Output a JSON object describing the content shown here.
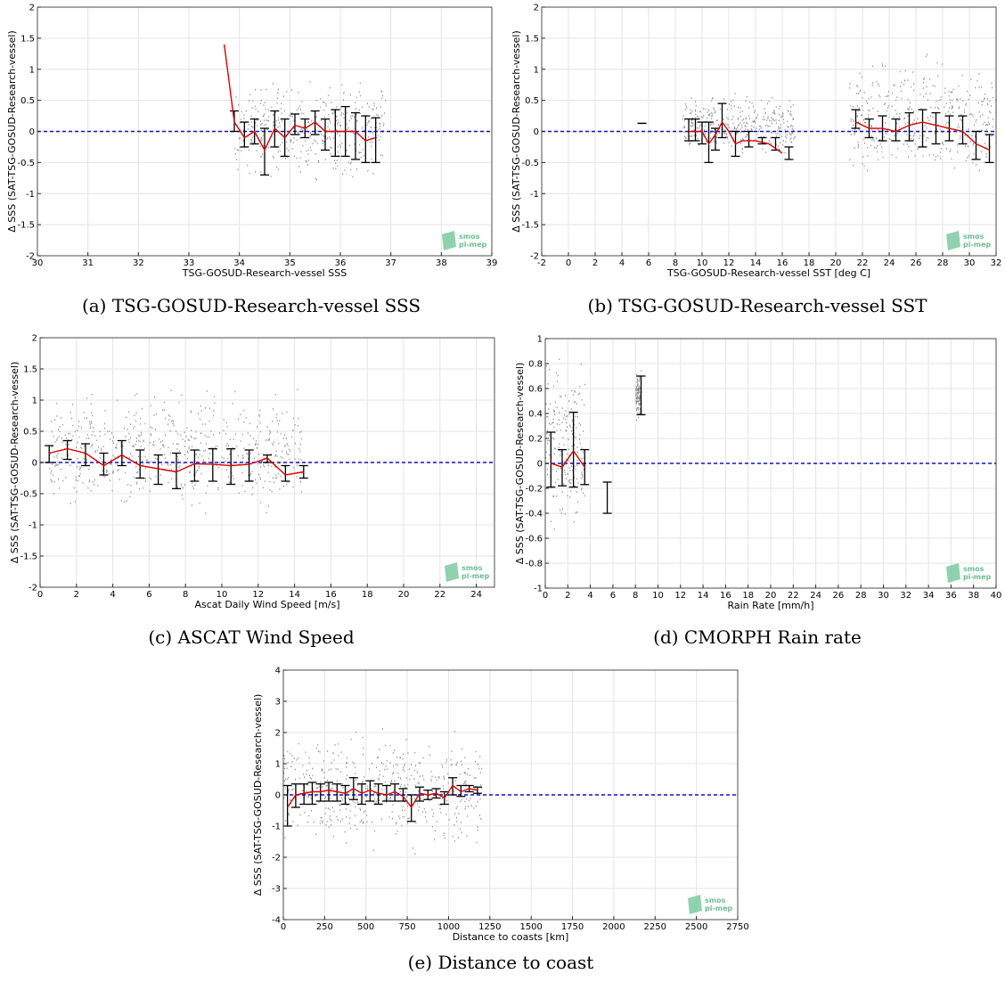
{
  "colors": {
    "scatter": "#8a8a8a",
    "median_line": "#e00000",
    "zero_line": "#1010cc",
    "errorbar": "#000000",
    "grid": "#e4e4e4",
    "logo": "#7cc9a0"
  },
  "logo": {
    "line1": "smos",
    "line2": "pi-mep"
  },
  "chart_data": [
    {
      "id": "a",
      "type": "scatter",
      "caption": "(a) TSG-GOSUD-Research-vessel SSS",
      "xlabel": "TSG-GOSUD-Research-vessel SSS",
      "ylabel": "Δ SSS (SAT-TSG-GOSUD-Research-vessel)",
      "xlim": [
        30,
        39
      ],
      "ylim": [
        -2,
        2
      ],
      "xticks": [
        30,
        31,
        32,
        33,
        34,
        35,
        36,
        37,
        38,
        39
      ],
      "yticks": [
        -2,
        -1.5,
        -1,
        -0.5,
        0,
        0.5,
        1,
        1.5,
        2
      ],
      "grid": true,
      "zero_line": 0,
      "scatter_region": [
        [
          33.9,
          36.9,
          -0.9,
          1.0
        ]
      ],
      "median": {
        "x": [
          33.7,
          33.9,
          34.1,
          34.3,
          34.5,
          34.7,
          34.9,
          35.1,
          35.3,
          35.5,
          35.7,
          35.9,
          36.1,
          36.3,
          36.5,
          36.7
        ],
        "y": [
          1.4,
          0.15,
          -0.1,
          0.0,
          -0.3,
          0.05,
          -0.1,
          0.1,
          0.05,
          0.15,
          0.0,
          0.0,
          0.0,
          0.0,
          -0.15,
          -0.1
        ]
      },
      "errorbars": {
        "x": [
          33.9,
          34.1,
          34.3,
          34.5,
          34.7,
          34.9,
          35.1,
          35.3,
          35.5,
          35.7,
          35.9,
          36.1,
          36.3,
          36.5,
          36.7
        ],
        "lo": [
          0.0,
          -0.25,
          -0.2,
          -0.7,
          -0.25,
          -0.4,
          -0.05,
          -0.1,
          -0.05,
          -0.3,
          -0.4,
          -0.4,
          -0.45,
          -0.5,
          -0.5
        ],
        "hi": [
          0.33,
          0.15,
          0.2,
          0.05,
          0.33,
          0.2,
          0.28,
          0.2,
          0.33,
          0.2,
          0.35,
          0.4,
          0.3,
          0.25,
          0.22
        ]
      }
    },
    {
      "id": "b",
      "type": "scatter",
      "caption": "(b) TSG-GOSUD-Research-vessel SST",
      "xlabel": "TSG-GOSUD-Research-vessel SST [deg C]",
      "ylabel": "Δ SSS (SAT-TSG-GOSUD-Research-vessel)",
      "xlim": [
        -2,
        32
      ],
      "ylim": [
        -2,
        2
      ],
      "xticks": [
        -2,
        0,
        2,
        4,
        6,
        8,
        10,
        12,
        14,
        16,
        18,
        20,
        22,
        24,
        26,
        28,
        30,
        32
      ],
      "yticks": [
        -2,
        -1.5,
        -1,
        -0.5,
        0,
        0.5,
        1,
        1.5,
        2
      ],
      "grid": true,
      "zero_line": 0,
      "scatter_region": [
        [
          8.5,
          17,
          -0.5,
          0.7
        ],
        [
          21,
          32,
          -0.95,
          1.4
        ]
      ],
      "median": {
        "x": [
          9,
          10,
          10.5,
          11,
          11.5,
          12,
          12.5,
          13,
          14,
          15,
          16
        ],
        "y": [
          0.0,
          0.0,
          -0.2,
          -0.05,
          0.15,
          0.0,
          -0.2,
          -0.15,
          -0.15,
          -0.2,
          -0.35
        ],
        "x2": [
          21.5,
          22.5,
          23.5,
          24.5,
          25.5,
          26.5,
          27.5,
          28.5,
          29.5,
          30.5,
          31.5
        ],
        "y2": [
          0.15,
          0.05,
          0.05,
          0.0,
          0.1,
          0.15,
          0.1,
          0.05,
          0.0,
          -0.2,
          -0.3
        ]
      },
      "errorbars": {
        "x": [
          5.5,
          9,
          9.5,
          10,
          10.5,
          11,
          11.5,
          12.5,
          13.5,
          14.5,
          15.5,
          16.5,
          21.5,
          22.5,
          23.5,
          24.5,
          25.5,
          26.5,
          27.5,
          28.5,
          29.5,
          30.5,
          31.5
        ],
        "lo": [
          0.13,
          -0.15,
          -0.15,
          -0.2,
          -0.5,
          -0.3,
          -0.1,
          -0.4,
          -0.25,
          -0.2,
          -0.3,
          -0.45,
          0.05,
          -0.1,
          -0.15,
          -0.15,
          -0.15,
          -0.25,
          -0.2,
          -0.15,
          -0.2,
          -0.45,
          -0.5
        ],
        "hi": [
          0.13,
          0.2,
          0.2,
          0.15,
          0.15,
          0.05,
          0.45,
          0.0,
          0.0,
          -0.1,
          -0.1,
          -0.25,
          0.35,
          0.2,
          0.25,
          0.2,
          0.3,
          0.35,
          0.3,
          0.25,
          0.25,
          0.0,
          -0.05
        ]
      }
    },
    {
      "id": "c",
      "type": "scatter",
      "caption": "(c) ASCAT Wind Speed",
      "xlabel": "Ascat Daily Wind Speed [m/s]",
      "ylabel": "Δ SSS (SAT-TSG-GOSUD-Research-vessel)",
      "xlim": [
        0,
        25
      ],
      "ylim": [
        -2,
        2
      ],
      "xticks": [
        0,
        2,
        4,
        6,
        8,
        10,
        12,
        14,
        16,
        18,
        20,
        22,
        24
      ],
      "yticks": [
        -2,
        -1.5,
        -1,
        -0.5,
        0,
        0.5,
        1,
        1.5,
        2
      ],
      "grid": true,
      "zero_line": 0,
      "scatter_region": [
        [
          0.5,
          14.5,
          -0.95,
          1.4
        ]
      ],
      "median": {
        "x": [
          0.5,
          1.5,
          2.5,
          3.5,
          4.5,
          5.5,
          6.5,
          7.5,
          8.5,
          9.5,
          10.5,
          11.5,
          12.5,
          13.5,
          14.5
        ],
        "y": [
          0.15,
          0.22,
          0.15,
          -0.05,
          0.12,
          -0.05,
          -0.1,
          -0.15,
          -0.02,
          -0.03,
          -0.05,
          -0.03,
          0.07,
          -0.2,
          -0.15
        ]
      },
      "errorbars": {
        "x": [
          0.5,
          1.5,
          2.5,
          3.5,
          4.5,
          5.5,
          6.5,
          7.5,
          8.5,
          9.5,
          10.5,
          11.5,
          12.5,
          13.5,
          14.5
        ],
        "lo": [
          0.0,
          0.05,
          -0.05,
          -0.2,
          -0.05,
          -0.25,
          -0.35,
          -0.42,
          -0.3,
          -0.3,
          -0.35,
          -0.3,
          0.0,
          -0.3,
          -0.25
        ],
        "hi": [
          0.27,
          0.35,
          0.3,
          0.15,
          0.35,
          0.2,
          0.12,
          0.15,
          0.2,
          0.22,
          0.22,
          0.2,
          0.12,
          -0.05,
          -0.05
        ]
      }
    },
    {
      "id": "d",
      "type": "scatter",
      "caption": "(d) CMORPH Rain rate",
      "xlabel": "Rain Rate [mm/h]",
      "ylabel": "Δ SSS (SAT-TSG-GOSUD-Research-vessel)",
      "xlim": [
        0,
        40
      ],
      "ylim": [
        -1,
        1
      ],
      "xticks": [
        0,
        2,
        4,
        6,
        8,
        10,
        12,
        14,
        16,
        18,
        20,
        22,
        24,
        26,
        28,
        30,
        32,
        34,
        36,
        38,
        40
      ],
      "yticks": [
        -1,
        -0.8,
        -0.6,
        -0.4,
        -0.2,
        0,
        0.2,
        0.4,
        0.6,
        0.8,
        1
      ],
      "grid": true,
      "zero_line": 0,
      "scatter_region": [
        [
          0,
          3.5,
          -0.7,
          0.95
        ],
        [
          8,
          8.5,
          0.3,
          0.8
        ]
      ],
      "median": {
        "x": [
          0.5,
          1.5,
          2.5,
          3.5
        ],
        "y": [
          0.0,
          -0.03,
          0.1,
          -0.03
        ]
      },
      "errorbars": {
        "x": [
          0.5,
          1.5,
          2.5,
          3.5,
          5.5,
          8.5
        ],
        "lo": [
          -0.19,
          -0.18,
          -0.19,
          -0.17,
          -0.4,
          0.39
        ],
        "hi": [
          0.25,
          0.11,
          0.41,
          0.11,
          -0.15,
          0.7
        ]
      }
    },
    {
      "id": "e",
      "type": "scatter",
      "caption": "(e) Distance to coast",
      "xlabel": "Distance to coasts [km]",
      "ylabel": "Δ SSS (SAT-TSG-GOSUD-Research-vessel)",
      "xlim": [
        0,
        2750
      ],
      "ylim": [
        -4,
        4
      ],
      "xticks": [
        0,
        250,
        500,
        750,
        1000,
        1250,
        1500,
        1750,
        2000,
        2250,
        2500,
        2750
      ],
      "yticks": [
        -4,
        -3,
        -2,
        -1,
        0,
        1,
        2,
        3,
        4
      ],
      "grid": true,
      "zero_line": 0,
      "scatter_region": [
        [
          0,
          1200,
          -2.2,
          2.5
        ]
      ],
      "median": {
        "x": [
          25,
          75,
          125,
          175,
          225,
          275,
          325,
          375,
          425,
          475,
          525,
          575,
          625,
          675,
          725,
          775,
          825,
          875,
          925,
          975,
          1025,
          1075,
          1125,
          1175
        ],
        "y": [
          -0.4,
          0.0,
          0.05,
          0.1,
          0.1,
          0.15,
          0.1,
          0.05,
          0.2,
          0.05,
          0.15,
          0.05,
          0.0,
          0.1,
          -0.05,
          -0.4,
          0.05,
          0.0,
          0.05,
          -0.1,
          0.3,
          0.1,
          0.2,
          0.15
        ]
      },
      "errorbars": {
        "x": [
          25,
          75,
          125,
          175,
          225,
          275,
          325,
          375,
          425,
          475,
          525,
          575,
          625,
          675,
          725,
          775,
          825,
          875,
          925,
          975,
          1025,
          1075,
          1125,
          1175
        ],
        "lo": [
          -1.0,
          -0.4,
          -0.3,
          -0.3,
          -0.2,
          -0.2,
          -0.2,
          -0.3,
          -0.15,
          -0.3,
          -0.2,
          -0.3,
          -0.2,
          -0.2,
          -0.2,
          -0.85,
          -0.2,
          -0.15,
          -0.1,
          -0.3,
          0.0,
          -0.05,
          0.1,
          0.05
        ],
        "hi": [
          0.3,
          0.35,
          0.35,
          0.4,
          0.35,
          0.4,
          0.35,
          0.3,
          0.55,
          0.35,
          0.45,
          0.35,
          0.3,
          0.35,
          0.2,
          0.0,
          0.25,
          0.15,
          0.2,
          0.1,
          0.55,
          0.3,
          0.3,
          0.25
        ]
      }
    }
  ]
}
